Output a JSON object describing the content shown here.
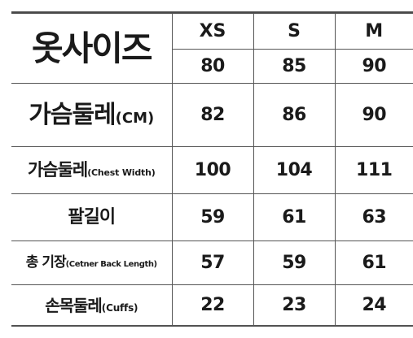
{
  "title": "옷사이즈",
  "sizes": [
    "XS",
    "S",
    "M"
  ],
  "size_numbers": [
    "80",
    "85",
    "90"
  ],
  "rows": [
    {
      "label": "가슴둘레",
      "unit": "(CM)",
      "values": [
        "82",
        "86",
        "90"
      ]
    },
    {
      "label": "가슴둘레",
      "unit": "(Chest Width)",
      "values": [
        "100",
        "104",
        "111"
      ]
    },
    {
      "label": "팔길이",
      "unit": "",
      "values": [
        "59",
        "61",
        "63"
      ]
    },
    {
      "label": "총 기장",
      "unit": "(Cetner Back Length)",
      "values": [
        "57",
        "59",
        "61"
      ]
    },
    {
      "label": "손목둘레",
      "unit": "(Cuffs)",
      "values": [
        "22",
        "23",
        "24"
      ]
    }
  ]
}
